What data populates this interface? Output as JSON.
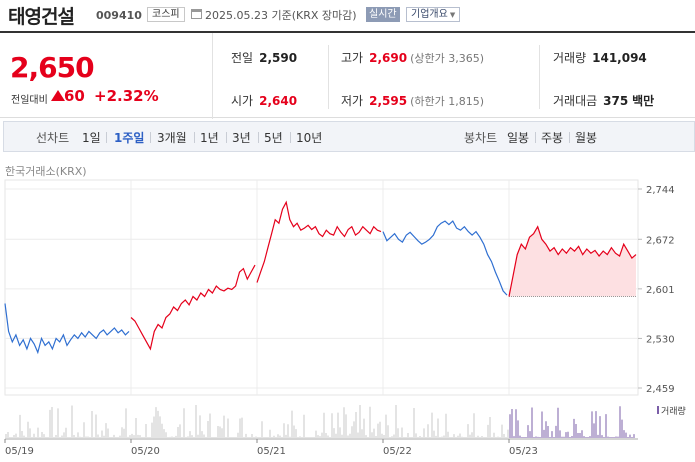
{
  "header": {
    "name": "태영건설",
    "code": "009410",
    "market": "코스피",
    "date_text": "2025.05.23  기준(KRX 장마감)",
    "realtime": "실시간",
    "overview": "기업개요"
  },
  "quote": {
    "price": "2,650",
    "change_label": "전일대비",
    "change_value": "60",
    "change_pct": "+2.32%",
    "prev_close": {
      "label": "전일",
      "value": "2,590"
    },
    "open": {
      "label": "시가",
      "value": "2,640"
    },
    "high": {
      "label": "고가",
      "value": "2,690",
      "limit": "(상한가 3,365)"
    },
    "low": {
      "label": "저가",
      "value": "2,595",
      "limit": "(하한가 1,815)"
    },
    "volume": {
      "label": "거래량",
      "value": "141,094"
    },
    "amount": {
      "label": "거래대금",
      "value": "375",
      "unit": "백만"
    }
  },
  "periods": {
    "line_label": "선차트",
    "line_items": [
      "1일",
      "1주일",
      "3개월",
      "1년",
      "3년",
      "5년",
      "10년"
    ],
    "active": "1주일",
    "candle_label": "봉차트",
    "candle_items": [
      "일봉",
      "주봉",
      "월봉"
    ]
  },
  "colors": {
    "up": "#e5001b",
    "down": "#2f6fd1",
    "up_fill": "#fde0e2"
  },
  "chart_data": {
    "type": "line",
    "source": "한국거래소(KRX)",
    "x_labels": [
      "05/19",
      "05/20",
      "05/21",
      "05/22",
      "05/23"
    ],
    "y_ticks": [
      2744,
      2672,
      2601,
      2530,
      2459
    ],
    "ylim": [
      2459,
      2744
    ],
    "baseline": 2590,
    "volume_label": "거래량",
    "series": [
      {
        "day": "05/19",
        "values": [
          2580,
          2540,
          2525,
          2535,
          2520,
          2528,
          2515,
          2530,
          2522,
          2510,
          2530,
          2520,
          2525,
          2515,
          2530,
          2525,
          2535,
          2520,
          2528,
          2535,
          2530,
          2538,
          2532,
          2540,
          2535,
          2530,
          2538,
          2542,
          2535,
          2540,
          2545,
          2538,
          2542,
          2535,
          2540
        ]
      },
      {
        "day": "05/20",
        "values": [
          2560,
          2555,
          2545,
          2535,
          2525,
          2515,
          2540,
          2550,
          2545,
          2560,
          2565,
          2575,
          2570,
          2580,
          2585,
          2578,
          2590,
          2585,
          2595,
          2590,
          2600,
          2595,
          2605,
          2600,
          2598,
          2602,
          2600,
          2605,
          2625,
          2630,
          2615,
          2625,
          2635
        ]
      },
      {
        "day": "05/21",
        "values": [
          2610,
          2625,
          2640,
          2660,
          2680,
          2700,
          2695,
          2715,
          2725,
          2700,
          2690,
          2695,
          2685,
          2688,
          2692,
          2686,
          2690,
          2680,
          2676,
          2685,
          2680,
          2678,
          2690,
          2682,
          2676,
          2686,
          2690,
          2678,
          2682,
          2690,
          2685,
          2680,
          2690,
          2685,
          2683
        ]
      },
      {
        "day": "05/22",
        "values": [
          2683,
          2670,
          2675,
          2680,
          2672,
          2668,
          2678,
          2682,
          2676,
          2670,
          2665,
          2668,
          2672,
          2678,
          2690,
          2695,
          2698,
          2693,
          2698,
          2688,
          2685,
          2690,
          2683,
          2678,
          2683,
          2675,
          2665,
          2650,
          2640,
          2625,
          2612,
          2598,
          2592
        ]
      },
      {
        "day": "05/23",
        "values": [
          2590,
          2620,
          2650,
          2665,
          2658,
          2675,
          2680,
          2690,
          2672,
          2665,
          2655,
          2660,
          2650,
          2658,
          2652,
          2660,
          2655,
          2662,
          2650,
          2658,
          2652,
          2656,
          2648,
          2655,
          2650,
          2660,
          2652,
          2648,
          2665,
          2655,
          2645,
          2650
        ]
      }
    ]
  }
}
